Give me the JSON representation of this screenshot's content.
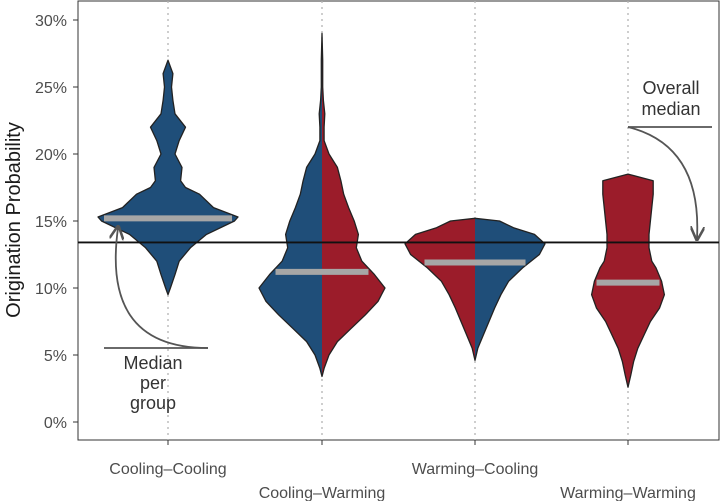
{
  "chart_data": {
    "type": "violin",
    "ylabel": "Origination Probability",
    "xlabel": "",
    "ylim": [
      0,
      0.31
    ],
    "y_ticks": [
      0,
      0.05,
      0.1,
      0.15,
      0.2,
      0.25,
      0.3
    ],
    "y_tick_labels": [
      "0%",
      "5%",
      "10%",
      "15%",
      "20%",
      "25%",
      "30%"
    ],
    "categories": [
      "Cooling–Cooling",
      "Cooling–Warming",
      "Warming–Cooling",
      "Warming–Warming"
    ],
    "category_label_rows": [
      0,
      1,
      0,
      1
    ],
    "grid": "vertical dotted at categories",
    "overall_median": 0.134,
    "colors": {
      "cooling": "#1f4e79",
      "warming": "#9b1c2a",
      "median_bar": "#a6a6a6",
      "outline": "#222222"
    },
    "groups": [
      {
        "name": "Cooling–Cooling",
        "left_color": "cooling",
        "right_color": "cooling",
        "median": 0.152,
        "profile": [
          [
            0.095,
            0.0
          ],
          [
            0.1,
            0.035
          ],
          [
            0.11,
            0.1
          ],
          [
            0.12,
            0.16
          ],
          [
            0.13,
            0.32
          ],
          [
            0.14,
            0.55
          ],
          [
            0.15,
            0.95
          ],
          [
            0.153,
            1.0
          ],
          [
            0.16,
            0.65
          ],
          [
            0.17,
            0.45
          ],
          [
            0.175,
            0.25
          ],
          [
            0.18,
            0.18
          ],
          [
            0.19,
            0.2
          ],
          [
            0.2,
            0.1
          ],
          [
            0.21,
            0.16
          ],
          [
            0.22,
            0.25
          ],
          [
            0.23,
            0.1
          ],
          [
            0.24,
            0.07
          ],
          [
            0.25,
            0.05
          ],
          [
            0.26,
            0.07
          ],
          [
            0.27,
            0.0
          ]
        ]
      },
      {
        "name": "Cooling–Warming",
        "left_color": "cooling",
        "right_color": "warming",
        "median": 0.112,
        "profile": [
          [
            0.034,
            0.0
          ],
          [
            0.04,
            0.03
          ],
          [
            0.05,
            0.1
          ],
          [
            0.06,
            0.22
          ],
          [
            0.07,
            0.42
          ],
          [
            0.08,
            0.62
          ],
          [
            0.09,
            0.8
          ],
          [
            0.1,
            0.9
          ],
          [
            0.11,
            0.75
          ],
          [
            0.12,
            0.57
          ],
          [
            0.13,
            0.49
          ],
          [
            0.14,
            0.52
          ],
          [
            0.15,
            0.46
          ],
          [
            0.16,
            0.38
          ],
          [
            0.17,
            0.31
          ],
          [
            0.18,
            0.27
          ],
          [
            0.19,
            0.22
          ],
          [
            0.2,
            0.1
          ],
          [
            0.21,
            0.03
          ],
          [
            0.22,
            0.03
          ],
          [
            0.23,
            0.04
          ],
          [
            0.24,
            0.02
          ],
          [
            0.25,
            0.01
          ],
          [
            0.27,
            0.01
          ],
          [
            0.29,
            0.0
          ]
        ]
      },
      {
        "name": "Warming–Cooling",
        "left_color": "warming",
        "right_color": "cooling",
        "median": 0.119,
        "profile": [
          [
            0.046,
            0.0
          ],
          [
            0.055,
            0.04
          ],
          [
            0.065,
            0.12
          ],
          [
            0.075,
            0.2
          ],
          [
            0.085,
            0.28
          ],
          [
            0.095,
            0.37
          ],
          [
            0.105,
            0.48
          ],
          [
            0.115,
            0.68
          ],
          [
            0.125,
            0.92
          ],
          [
            0.133,
            1.0
          ],
          [
            0.14,
            0.85
          ],
          [
            0.145,
            0.55
          ],
          [
            0.15,
            0.35
          ],
          [
            0.152,
            0.0
          ]
        ]
      },
      {
        "name": "Warming–Warming",
        "left_color": "warming",
        "right_color": "warming",
        "median": 0.104,
        "profile": [
          [
            0.026,
            0.0
          ],
          [
            0.035,
            0.04
          ],
          [
            0.045,
            0.08
          ],
          [
            0.055,
            0.14
          ],
          [
            0.065,
            0.23
          ],
          [
            0.075,
            0.32
          ],
          [
            0.085,
            0.45
          ],
          [
            0.095,
            0.52
          ],
          [
            0.105,
            0.48
          ],
          [
            0.115,
            0.4
          ],
          [
            0.12,
            0.34
          ],
          [
            0.13,
            0.3
          ],
          [
            0.14,
            0.3
          ],
          [
            0.15,
            0.32
          ],
          [
            0.16,
            0.34
          ],
          [
            0.17,
            0.36
          ],
          [
            0.18,
            0.36
          ],
          [
            0.185,
            0.0
          ]
        ]
      }
    ],
    "annotations": [
      {
        "lines": [
          "Median",
          "per",
          "group"
        ],
        "points_to": "median of Cooling–Cooling"
      },
      {
        "lines": [
          "Overall",
          "median"
        ],
        "points_to": "overall median line"
      }
    ]
  }
}
